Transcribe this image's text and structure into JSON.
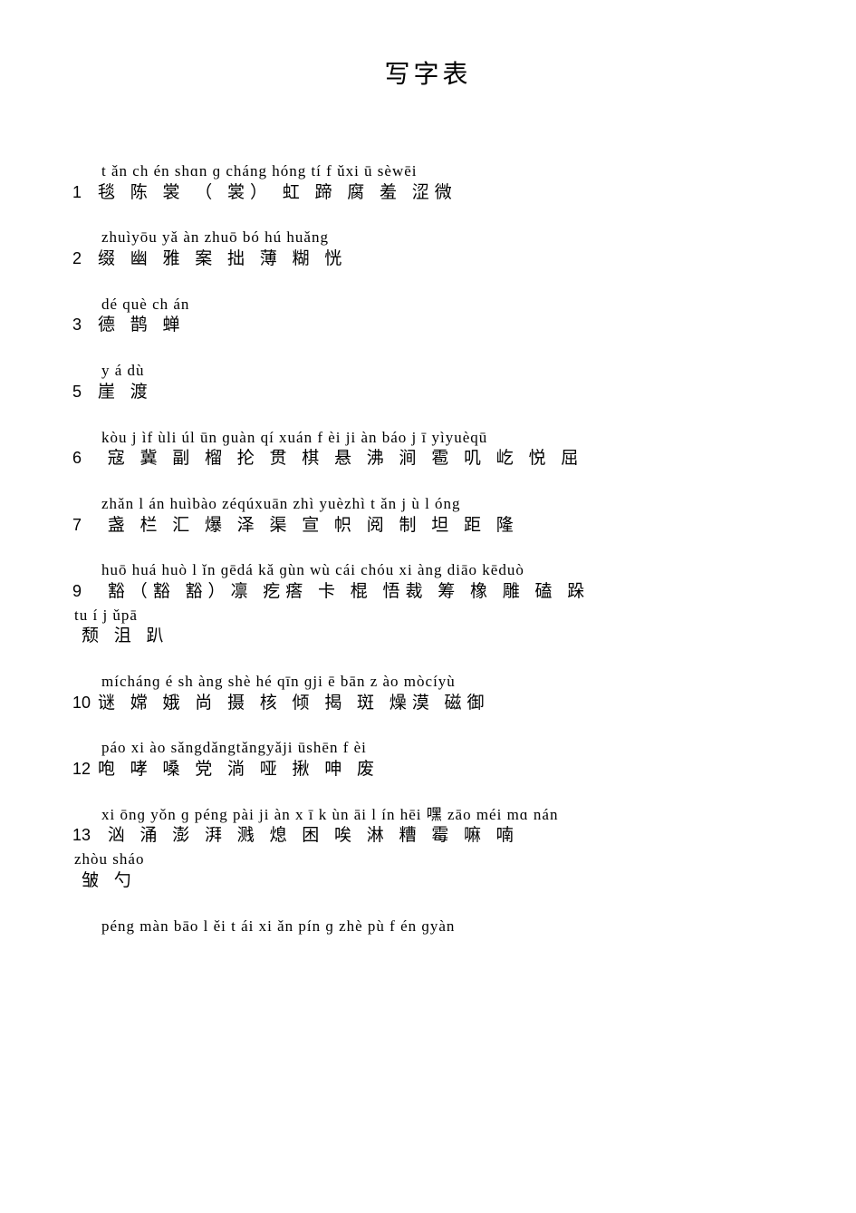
{
  "title": "写字表",
  "rows": [
    {
      "num": "1",
      "pinyin": "t ǎn ch én shɑn ɡ cháng   hóng tí  f ǔxi ū sèwēi",
      "chars": "毯    陈      裳  （   裳）    虹    蹄  腐 羞 涩微"
    },
    {
      "num": "2",
      "pinyin": "zhuìyōu   yǎ   àn  zhuō     bó  hú    huǎng",
      "chars": "缀   幽    雅   案   拙      薄 糊     恍"
    },
    {
      "num": "3",
      "pinyin": "dé què ch án",
      "chars": "德 鹊  蝉"
    },
    {
      "num": "5",
      "pinyin": "y á dù",
      "chars": "崖 渡"
    },
    {
      "num": "6",
      "pinyin": "                     kòu j ìf ùli úl ūn ɡuàn qí xuán f èi ji àn báo j ī yìyuèqū",
      "chars": "    寇 冀 副 榴 抡 贯 棋 悬 沸 涧 雹 叽 屹 悦 屈"
    },
    {
      "num": "7",
      "pinyin": "     zhǎn l án huìbào zéqúxuān zhì yuèzhì t ǎn j ù l óng",
      "chars": "      盏 栏 汇 爆 泽 渠 宣 帜 阅 制 坦 距  隆"
    },
    {
      "num": "9",
      "pinyin": "huō huá   huò l ǐn       ɡēdá kǎ   ɡùn wù cái   chóu  xi àng diāo     kēduò",
      "chars": "    豁（豁    豁）凛         疙瘩 卡   棍  悟裁     筹     橡 雕          磕 跺",
      "continuation": {
        "pinyin": "tu í j ǔpā",
        "chars": "颓  沮 趴"
      }
    },
    {
      "num": "10",
      "pinyin": "    míchánɡ  é sh àng     shè hé  qīn  ɡji  ē bān    z ào mòcíyù",
      "chars": "谜 嫦      娥 尚      摄 核   倾    揭   斑     燥漠  磁御"
    },
    {
      "num": "12",
      "pinyin": "    páo xi ào sǎngdǎngtǎngyǎji ūshēn f èi",
      "chars": "咆 哮 嗓 党 淌 哑 揪 呻 废"
    },
    {
      "num": "13",
      "pinyin": "   xi ōnɡ yǒn ɡ péng pài        ji àn x ī k ùn āi l ín        hēi 嘿 zāo  méi  mɑ nán",
      "chars": "           汹 涌 澎       湃    溅    熄  困 唉    淋        糟   霉    嘛   喃",
      "continuation": {
        "pinyin": "zhòu  sháo",
        "chars": "皱     勺"
      }
    }
  ],
  "bottom_pinyin": "péng màn bāo l ěi    t ái  xi ǎn  pín ɡ zhè pù  f én ɡyàn"
}
